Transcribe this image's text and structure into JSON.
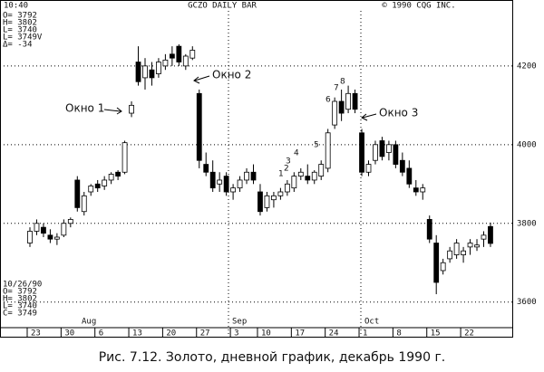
{
  "chart_data": {
    "type": "candlestick",
    "header": [
      "10:40",
      "GCZO DAILY BAR",
      "© 1990 CQG INC."
    ],
    "info_top": [
      "O= 3792",
      "H= 3802",
      "L= 3740",
      "L= 3749V",
      "Δ= -34"
    ],
    "info_bottom": [
      "10/26/90",
      "O= 3792",
      "H= 3802",
      "L= 3740",
      "C= 3749"
    ],
    "months": [
      "Aug",
      "Sep",
      "Oct"
    ],
    "caption": "Рис. 7.12. Золото, дневной график, декабрь 1990 г.",
    "annotations": [
      "Окно 1",
      "Окно 2",
      "Окно 3",
      "1",
      "2",
      "3",
      "4",
      "5",
      "6",
      "7",
      "8"
    ],
    "categories": [
      "23",
      null,
      null,
      null,
      null,
      "30",
      null,
      null,
      null,
      null,
      "6",
      null,
      null,
      null,
      null,
      "13",
      null,
      null,
      null,
      null,
      "20",
      null,
      null,
      null,
      null,
      "27",
      null,
      null,
      null,
      null,
      "3",
      null,
      null,
      null,
      "10",
      null,
      null,
      null,
      null,
      "17",
      null,
      null,
      null,
      null,
      "24",
      null,
      null,
      null,
      null,
      "1",
      null,
      null,
      null,
      null,
      "8",
      null,
      null,
      null,
      null,
      "15",
      null,
      null,
      null,
      null,
      "22",
      null,
      null,
      null,
      null
    ],
    "open": [
      3750,
      3780,
      3790,
      3770,
      3760,
      3770,
      3800,
      3910,
      3830,
      3880,
      3900,
      3895,
      3910,
      3930,
      3930,
      4080,
      4210,
      4170,
      4190,
      4180,
      4200,
      4230,
      4250,
      4200,
      4220,
      4130,
      3950,
      3930,
      3900,
      3920,
      3880,
      3890,
      3910,
      3930,
      3880,
      3840,
      3860,
      3870,
      3880,
      3890,
      3920,
      3920,
      3910,
      3920,
      3940,
      4050,
      4110,
      4090,
      4130,
      4030,
      3930,
      3960,
      4010,
      3980,
      4000,
      3960,
      3940,
      3890,
      3880,
      3810,
      3750,
      3680,
      3710,
      3720,
      3720,
      3740,
      3740,
      3760,
      3792
    ],
    "high": [
      3790,
      3810,
      3800,
      3785,
      3775,
      3810,
      3815,
      3920,
      3880,
      3900,
      3910,
      3920,
      3930,
      3935,
      4010,
      4110,
      4250,
      4220,
      4210,
      4220,
      4230,
      4250,
      4255,
      4230,
      4250,
      4140,
      3980,
      3960,
      3930,
      3930,
      3900,
      3920,
      3940,
      3950,
      3900,
      3880,
      3880,
      3890,
      3910,
      3930,
      3940,
      3950,
      3935,
      3960,
      4040,
      4120,
      4140,
      4150,
      4140,
      4040,
      3960,
      4010,
      4020,
      4010,
      4010,
      3980,
      3960,
      3910,
      3900,
      3820,
      3770,
      3710,
      3740,
      3760,
      3740,
      3760,
      3760,
      3780,
      3802
    ],
    "low": [
      3740,
      3770,
      3765,
      3750,
      3745,
      3765,
      3790,
      3830,
      3820,
      3870,
      3880,
      3885,
      3900,
      3910,
      3925,
      4070,
      4150,
      4140,
      4150,
      4170,
      4190,
      4200,
      4200,
      4190,
      4215,
      3940,
      3920,
      3880,
      3880,
      3870,
      3860,
      3880,
      3900,
      3900,
      3820,
      3830,
      3840,
      3860,
      3870,
      3880,
      3910,
      3900,
      3900,
      3910,
      3930,
      4040,
      4060,
      4080,
      4080,
      3920,
      3920,
      3950,
      3960,
      3960,
      3940,
      3920,
      3890,
      3870,
      3860,
      3750,
      3620,
      3670,
      3700,
      3710,
      3700,
      3720,
      3730,
      3740,
      3740
    ],
    "close": [
      3780,
      3800,
      3775,
      3760,
      3765,
      3800,
      3810,
      3840,
      3870,
      3895,
      3890,
      3910,
      3925,
      3920,
      4005,
      4100,
      4160,
      4200,
      4170,
      4210,
      4215,
      4220,
      4210,
      4225,
      4240,
      3960,
      3930,
      3890,
      3910,
      3880,
      3890,
      3910,
      3930,
      3910,
      3830,
      3870,
      3870,
      3880,
      3900,
      3920,
      3930,
      3910,
      3930,
      3950,
      4030,
      4110,
      4080,
      4130,
      4090,
      3930,
      3950,
      4000,
      3970,
      4000,
      3950,
      3930,
      3900,
      3880,
      3890,
      3760,
      3650,
      3700,
      3730,
      3750,
      3730,
      3750,
      3745,
      3770,
      3749
    ],
    "up_color": "#ffffff",
    "down_color": "#000000",
    "ylim": [
      3535,
      4340
    ],
    "yticks": [
      3600,
      3800,
      4000,
      4200
    ],
    "grid": true
  }
}
